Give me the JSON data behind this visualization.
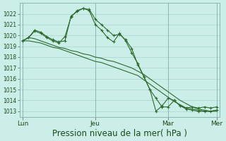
{
  "bg_color": "#cceee8",
  "grid_color": "#aad4cc",
  "line_color": "#2d6a2d",
  "ymin": 1012.5,
  "ymax": 1023.0,
  "yticks": [
    1013,
    1014,
    1015,
    1016,
    1017,
    1018,
    1019,
    1020,
    1021,
    1022
  ],
  "xlabel": "Pression niveau de la mer( hPa )",
  "xlabel_fontsize": 8.5,
  "xtick_labels": [
    "Lun",
    "Jeu",
    "Mar",
    "Mer"
  ],
  "xtick_positions": [
    0,
    12,
    24,
    32
  ],
  "total_points": 33,
  "series_marked1": [
    1019.5,
    1019.8,
    1020.4,
    1020.2,
    1019.8,
    1019.5,
    1019.3,
    1019.9,
    1021.7,
    1022.3,
    1022.5,
    1022.4,
    1021.5,
    1021.0,
    1020.5,
    1020.0,
    1020.1,
    1019.6,
    1018.8,
    1017.3,
    1016.2,
    1015.0,
    1013.0,
    1013.5,
    1014.2,
    1014.0,
    1013.5,
    1013.2,
    1013.1,
    1013.0,
    1013.0,
    1013.0,
    1013.1
  ],
  "series_marked2": [
    1019.5,
    1019.8,
    1020.5,
    1020.3,
    1019.9,
    1019.6,
    1019.4,
    1019.5,
    1021.8,
    1022.2,
    1022.5,
    1022.3,
    1021.0,
    1020.5,
    1019.8,
    1019.4,
    1020.2,
    1019.5,
    1018.4,
    1017.4,
    1016.2,
    1015.0,
    1014.2,
    1013.4,
    1013.4,
    1014.0,
    1013.5,
    1013.3,
    1013.4,
    1013.3,
    1013.4,
    1013.3,
    1013.4
  ],
  "series_trend1": [
    1019.5,
    1019.8,
    1019.7,
    1019.5,
    1019.3,
    1019.1,
    1018.9,
    1018.8,
    1018.6,
    1018.5,
    1018.3,
    1018.2,
    1018.0,
    1017.9,
    1017.7,
    1017.6,
    1017.4,
    1017.2,
    1017.0,
    1016.7,
    1016.4,
    1016.0,
    1015.6,
    1015.2,
    1014.8,
    1014.4,
    1014.0,
    1013.7,
    1013.4,
    1013.2,
    1013.1,
    1013.0,
    1013.0
  ],
  "series_trend2": [
    1019.5,
    1019.5,
    1019.4,
    1019.3,
    1019.1,
    1018.9,
    1018.8,
    1018.6,
    1018.4,
    1018.2,
    1018.0,
    1017.8,
    1017.6,
    1017.5,
    1017.3,
    1017.1,
    1016.9,
    1016.7,
    1016.5,
    1016.3,
    1015.9,
    1015.5,
    1015.1,
    1014.7,
    1014.3,
    1013.9,
    1013.6,
    1013.3,
    1013.2,
    1013.1,
    1013.0,
    1013.0,
    1013.1
  ]
}
